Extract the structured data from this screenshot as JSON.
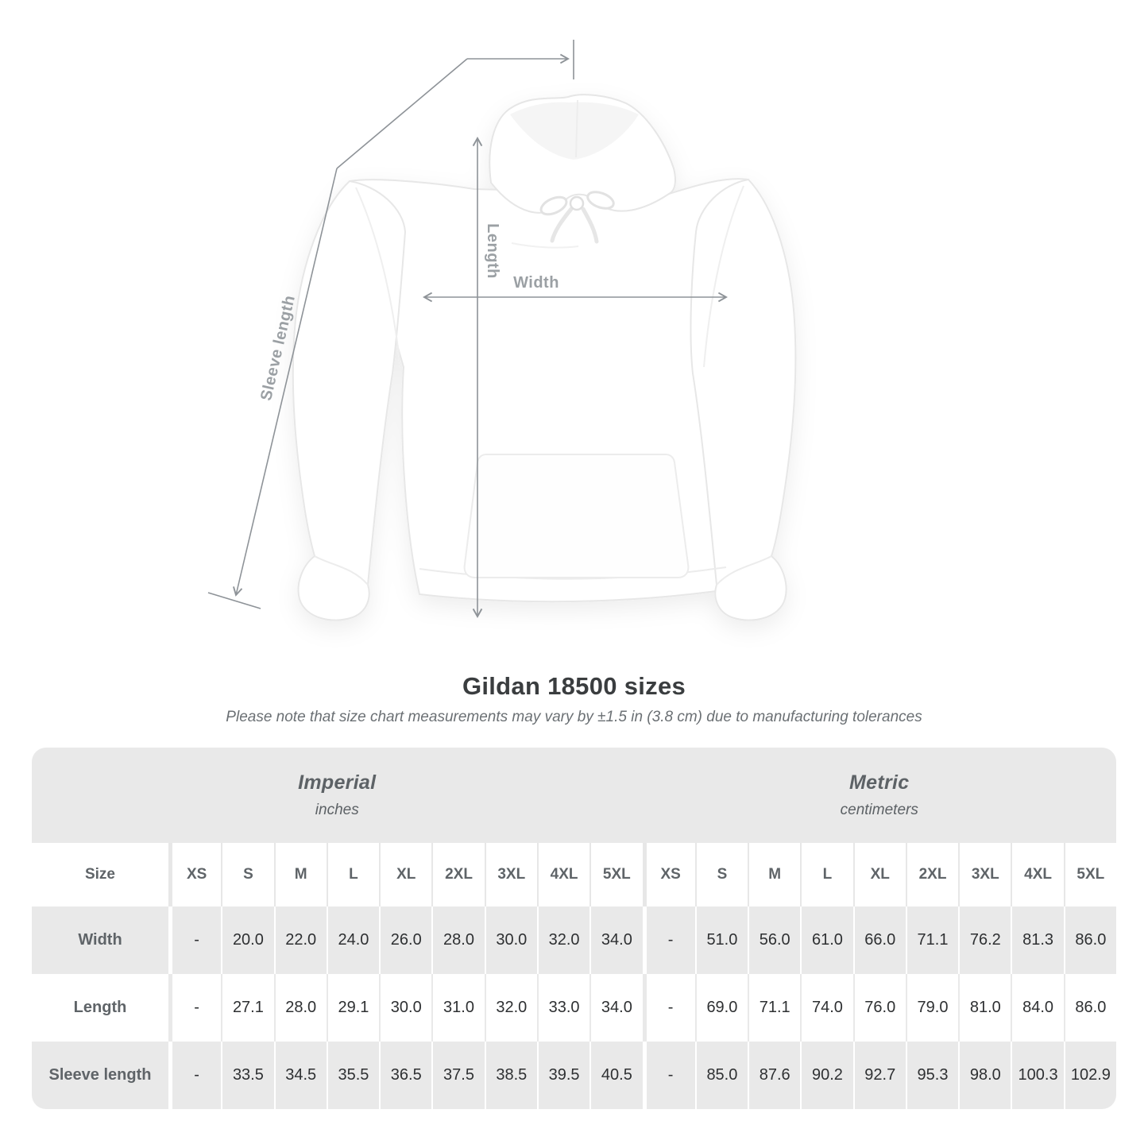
{
  "diagram": {
    "measurements": {
      "sleeve_label": "Sleeve length",
      "length_label": "Length",
      "width_label": "Width"
    },
    "line_color": "#8e9398",
    "label_color": "#9ba0a4"
  },
  "heading": {
    "title": "Gildan 18500 sizes",
    "subtitle": "Please note that size chart measurements may vary by ±1.5 in (3.8 cm) due to manufacturing tolerances"
  },
  "size_table": {
    "corner_label": "Size",
    "groups": [
      {
        "name": "Imperial",
        "unit": "inches"
      },
      {
        "name": "Metric",
        "unit": "centimeters"
      }
    ],
    "sizes": [
      "XS",
      "S",
      "M",
      "L",
      "XL",
      "2XL",
      "3XL",
      "4XL",
      "5XL"
    ],
    "rows": [
      {
        "label": "Width",
        "imperial": [
          "-",
          "20.0",
          "22.0",
          "24.0",
          "26.0",
          "28.0",
          "30.0",
          "32.0",
          "34.0"
        ],
        "metric": [
          "-",
          "51.0",
          "56.0",
          "61.0",
          "66.0",
          "71.1",
          "76.2",
          "81.3",
          "86.0"
        ]
      },
      {
        "label": "Length",
        "imperial": [
          "-",
          "27.1",
          "28.0",
          "29.1",
          "30.0",
          "31.0",
          "32.0",
          "33.0",
          "34.0"
        ],
        "metric": [
          "-",
          "69.0",
          "71.1",
          "74.0",
          "76.0",
          "79.0",
          "81.0",
          "84.0",
          "86.0"
        ]
      },
      {
        "label": "Sleeve length",
        "imperial": [
          "-",
          "33.5",
          "34.5",
          "35.5",
          "36.5",
          "37.5",
          "38.5",
          "39.5",
          "40.5"
        ],
        "metric": [
          "-",
          "85.0",
          "87.6",
          "90.2",
          "92.7",
          "95.3",
          "98.0",
          "100.3",
          "102.9"
        ]
      }
    ]
  },
  "chart_data": {
    "type": "table",
    "title": "Gildan 18500 sizes",
    "subtitle": "Please note that size chart measurements may vary by ±1.5 in (3.8 cm) due to manufacturing tolerances",
    "column_groups": [
      "Imperial (inches)",
      "Metric (centimeters)"
    ],
    "columns": [
      "Size",
      "XS",
      "S",
      "M",
      "L",
      "XL",
      "2XL",
      "3XL",
      "4XL",
      "5XL",
      "XS",
      "S",
      "M",
      "L",
      "XL",
      "2XL",
      "3XL",
      "4XL",
      "5XL"
    ],
    "rows": [
      [
        "Width",
        "-",
        20.0,
        22.0,
        24.0,
        26.0,
        28.0,
        30.0,
        32.0,
        34.0,
        "-",
        51.0,
        56.0,
        61.0,
        66.0,
        71.1,
        76.2,
        81.3,
        86.0
      ],
      [
        "Length",
        "-",
        27.1,
        28.0,
        29.1,
        30.0,
        31.0,
        32.0,
        33.0,
        34.0,
        "-",
        69.0,
        71.1,
        74.0,
        76.0,
        79.0,
        81.0,
        84.0,
        86.0
      ],
      [
        "Sleeve length",
        "-",
        33.5,
        34.5,
        35.5,
        36.5,
        37.5,
        38.5,
        39.5,
        40.5,
        "-",
        85.0,
        87.6,
        90.2,
        92.7,
        95.3,
        98.0,
        100.3,
        102.9
      ]
    ]
  },
  "colors": {
    "table_gray": "#e9e9e9",
    "header_text": "#5f6468",
    "value_text": "#2e3032",
    "title_text": "#3a3d3f",
    "subtitle_text": "#6b7074"
  }
}
